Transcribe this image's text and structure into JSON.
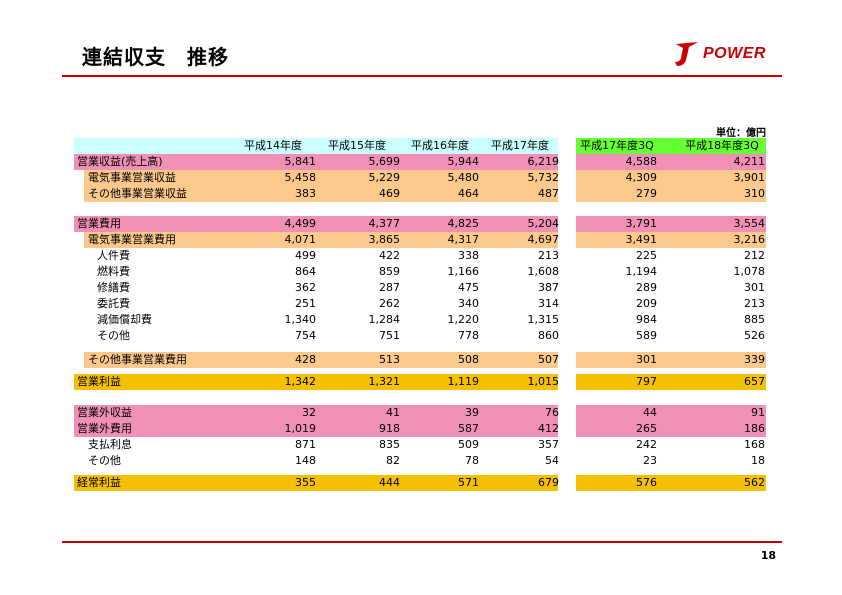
{
  "title": "連結収支　推移",
  "logo_text": "POWER",
  "unit": "単位：億円",
  "page_number": "18",
  "colors": {
    "header": "#ccffff",
    "header_green": "#66ff33",
    "pink": "#f190b7",
    "orange": "#fac98b",
    "yellow": "#f5c000",
    "rule": "#cc0000"
  },
  "columns": [
    "平成14年度",
    "平成15年度",
    "平成16年度",
    "平成17年度",
    "平成17年度3Q",
    "平成18年度3Q"
  ],
  "rows": [
    {
      "label": "営業収益(売上高)",
      "values": [
        "5,841",
        "5,699",
        "5,944",
        "6,219",
        "4,588",
        "4,211"
      ],
      "style": "pink",
      "indent": 0
    },
    {
      "label": "電気事業営業収益",
      "values": [
        "5,458",
        "5,229",
        "5,480",
        "5,732",
        "4,309",
        "3,901"
      ],
      "style": "orange",
      "indent": 1
    },
    {
      "label": "その他事業営業収益",
      "values": [
        "383",
        "469",
        "464",
        "487",
        "279",
        "310"
      ],
      "style": "orange",
      "indent": 1
    },
    {
      "label": "営業費用",
      "values": [
        "4,499",
        "4,377",
        "4,825",
        "5,204",
        "3,791",
        "3,554"
      ],
      "style": "pink",
      "indent": 0
    },
    {
      "label": "電気事業営業費用",
      "values": [
        "4,071",
        "3,865",
        "4,317",
        "4,697",
        "3,491",
        "3,216"
      ],
      "style": "orange",
      "indent": 1
    },
    {
      "label": "人件費",
      "values": [
        "499",
        "422",
        "338",
        "213",
        "225",
        "212"
      ],
      "style": "none",
      "indent": 2
    },
    {
      "label": "燃料費",
      "values": [
        "864",
        "859",
        "1,166",
        "1,608",
        "1,194",
        "1,078"
      ],
      "style": "none",
      "indent": 2
    },
    {
      "label": "修繕費",
      "values": [
        "362",
        "287",
        "475",
        "387",
        "289",
        "301"
      ],
      "style": "none",
      "indent": 2
    },
    {
      "label": "委託費",
      "values": [
        "251",
        "262",
        "340",
        "314",
        "209",
        "213"
      ],
      "style": "none",
      "indent": 2
    },
    {
      "label": "減価償却費",
      "values": [
        "1,340",
        "1,284",
        "1,220",
        "1,315",
        "984",
        "885"
      ],
      "style": "none",
      "indent": 2
    },
    {
      "label": "その他",
      "values": [
        "754",
        "751",
        "778",
        "860",
        "589",
        "526"
      ],
      "style": "none",
      "indent": 2
    },
    {
      "label": "その他事業営業費用",
      "values": [
        "428",
        "513",
        "508",
        "507",
        "301",
        "339"
      ],
      "style": "orange",
      "indent": 1
    },
    {
      "label": "営業利益",
      "values": [
        "1,342",
        "1,321",
        "1,119",
        "1,015",
        "797",
        "657"
      ],
      "style": "yellow",
      "indent": 0
    },
    {
      "label": "営業外収益",
      "values": [
        "32",
        "41",
        "39",
        "76",
        "44",
        "91"
      ],
      "style": "pink",
      "indent": 0
    },
    {
      "label": "営業外費用",
      "values": [
        "1,019",
        "918",
        "587",
        "412",
        "265",
        "186"
      ],
      "style": "pink",
      "indent": 0
    },
    {
      "label": "支払利息",
      "values": [
        "871",
        "835",
        "509",
        "357",
        "242",
        "168"
      ],
      "style": "none",
      "indent": 1
    },
    {
      "label": "その他",
      "values": [
        "148",
        "82",
        "78",
        "54",
        "23",
        "18"
      ],
      "style": "none",
      "indent": 1
    },
    {
      "label": "経常利益",
      "values": [
        "355",
        "444",
        "571",
        "679",
        "576",
        "562"
      ],
      "style": "yellow",
      "indent": 0
    }
  ]
}
